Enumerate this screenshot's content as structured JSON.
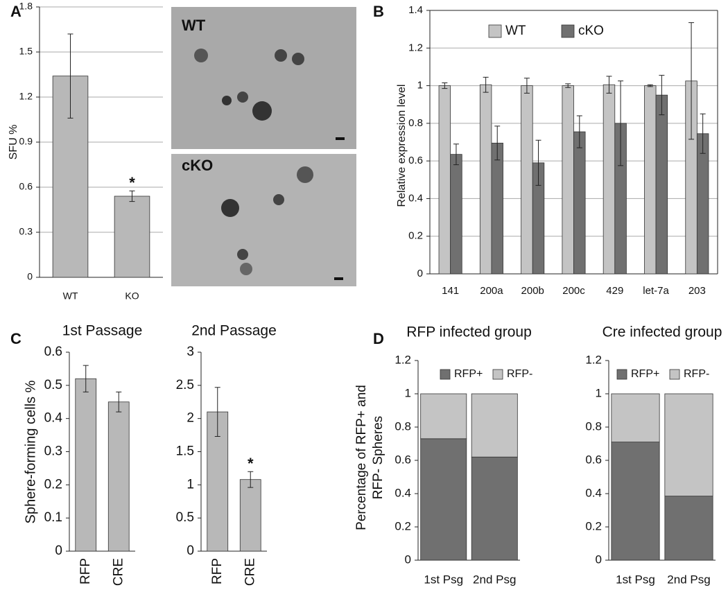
{
  "micrographs": [
    {
      "label": "WT"
    },
    {
      "label": "cKO"
    }
  ],
  "chart_data": [
    {
      "type": "bar",
      "panel": "A",
      "ylabel": "SFU %",
      "categories": [
        "WT",
        "KO"
      ],
      "values": [
        1.34,
        0.54
      ],
      "errors": [
        0.28,
        0.035
      ],
      "color": "#b8b8b8",
      "ylim": [
        0,
        1.8
      ],
      "yticks": [
        0,
        0.3,
        0.6,
        0.9,
        1.2,
        1.5,
        1.8
      ],
      "grid": true,
      "annotations": [
        {
          "text": "*",
          "category": "KO"
        }
      ]
    },
    {
      "type": "bar",
      "panel": "B",
      "ylabel": "Relative expression level",
      "categories": [
        "141",
        "200a",
        "200b",
        "200c",
        "429",
        "let-7a",
        "203"
      ],
      "series": [
        {
          "name": "WT",
          "color": "#c4c4c4",
          "values": [
            1.0,
            1.005,
            1.0,
            1.0,
            1.005,
            1.0,
            1.025
          ],
          "errors": [
            0.015,
            0.04,
            0.04,
            0.01,
            0.045,
            0.005,
            0.31
          ]
        },
        {
          "name": "cKO",
          "color": "#707070",
          "values": [
            0.635,
            0.695,
            0.59,
            0.755,
            0.8,
            0.95,
            0.745
          ],
          "errors": [
            0.055,
            0.09,
            0.12,
            0.085,
            0.225,
            0.105,
            0.105
          ]
        }
      ],
      "ylim": [
        0,
        1.4
      ],
      "yticks": [
        0,
        0.2,
        0.4,
        0.6,
        0.8,
        1,
        1.2,
        1.4
      ],
      "grid": true,
      "legend": "top-left"
    },
    {
      "type": "bar",
      "panel": "C",
      "title": "1st Passage",
      "ylabel": "Sphere-forming cells %",
      "categories": [
        "RFP",
        "CRE"
      ],
      "values": [
        0.52,
        0.45
      ],
      "errors": [
        0.04,
        0.03
      ],
      "color": "#b8b8b8",
      "ylim": [
        0,
        0.6
      ],
      "yticks": [
        0,
        0.1,
        0.2,
        0.3,
        0.4,
        0.5,
        0.6
      ],
      "grid": false
    },
    {
      "type": "bar",
      "title": "2nd Passage",
      "categories": [
        "RFP",
        "CRE"
      ],
      "values": [
        2.1,
        1.08
      ],
      "errors": [
        0.37,
        0.12
      ],
      "color": "#b8b8b8",
      "ylim": [
        0,
        3
      ],
      "yticks": [
        0,
        0.5,
        1,
        1.5,
        2,
        2.5,
        3
      ],
      "grid": false,
      "annotations": [
        {
          "text": "*",
          "category": "CRE"
        }
      ]
    },
    {
      "type": "stacked-bar",
      "panel": "D",
      "title": "RFP infected group",
      "ylabel": [
        "Percentage of RFP+ and",
        "RFP- Spheres"
      ],
      "categories": [
        "1st Psg",
        "2nd Psg"
      ],
      "series": [
        {
          "name": "RFP+",
          "color": "#707070",
          "values": [
            0.73,
            0.62
          ]
        },
        {
          "name": "RFP-",
          "color": "#c4c4c4",
          "values": [
            0.27,
            0.38
          ]
        }
      ],
      "ylim": [
        0,
        1.2
      ],
      "yticks": [
        0,
        0.2,
        0.4,
        0.6,
        0.8,
        1,
        1.2
      ],
      "grid": false,
      "legend": "top"
    },
    {
      "type": "stacked-bar",
      "title": "Cre infected group",
      "categories": [
        "1st Psg",
        "2nd Psg"
      ],
      "series": [
        {
          "name": "RFP+",
          "color": "#707070",
          "values": [
            0.71,
            0.385
          ]
        },
        {
          "name": "RFP-",
          "color": "#c4c4c4",
          "values": [
            0.29,
            0.615
          ]
        }
      ],
      "ylim": [
        0,
        1.2
      ],
      "yticks": [
        0,
        0.2,
        0.4,
        0.6,
        0.8,
        1,
        1.2
      ],
      "grid": false,
      "legend": "top"
    }
  ]
}
